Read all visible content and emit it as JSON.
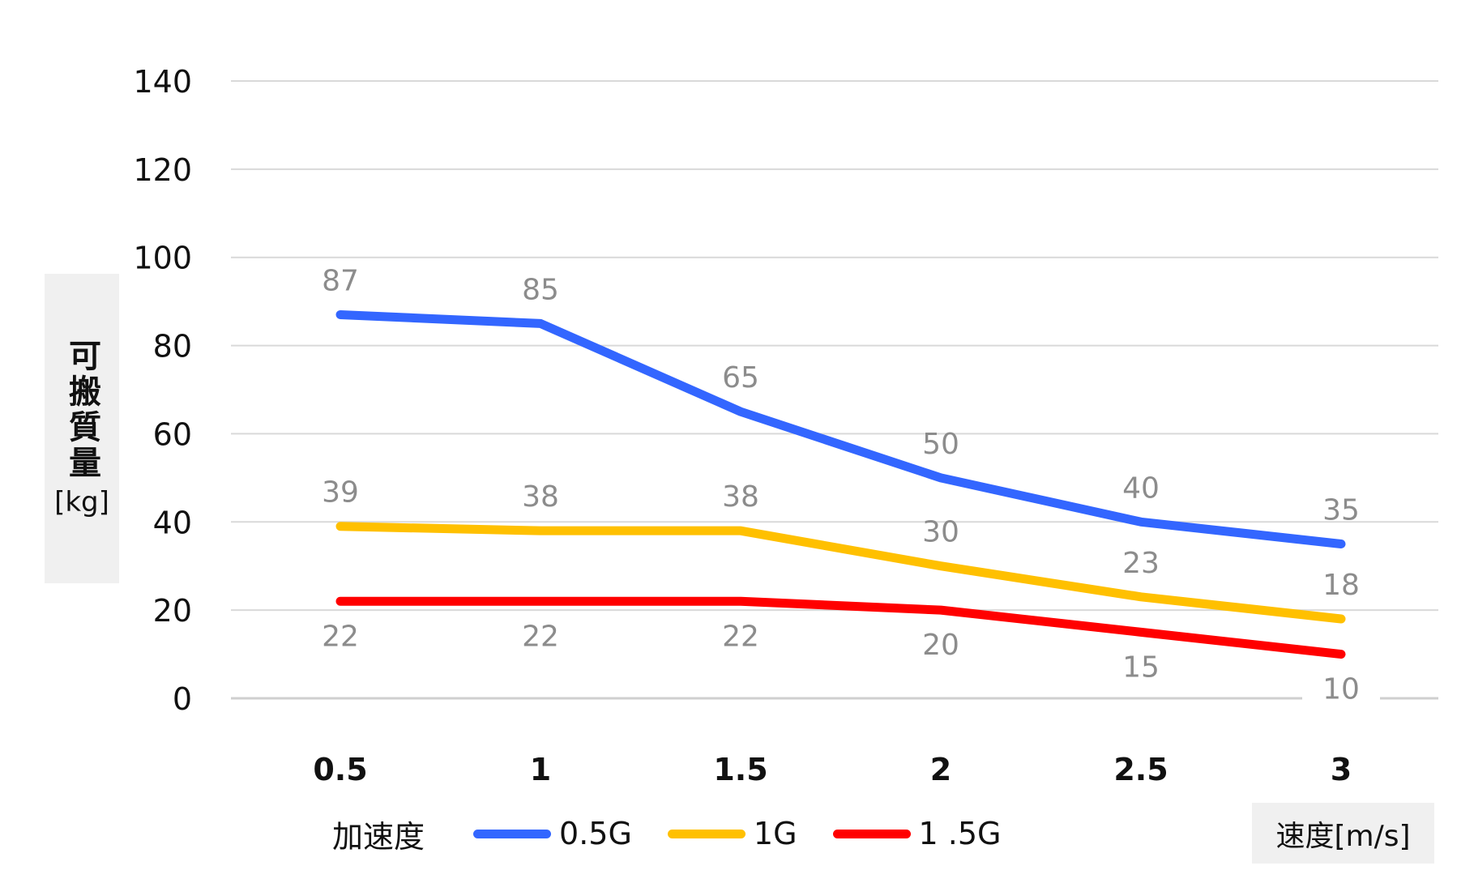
{
  "chart_data": {
    "type": "line",
    "x": [
      "0.5",
      "1",
      "1.5",
      "2",
      "2.5",
      "3"
    ],
    "ylabel": "可搬質量",
    "yunit": "[kg]",
    "xunit": "速度[m/s]",
    "ylim": [
      0,
      140
    ],
    "yticks": [
      0,
      20,
      40,
      60,
      80,
      100,
      120,
      140
    ],
    "grid": true,
    "legend_title": "加速度",
    "legend_position": "bottom",
    "series": [
      {
        "name": "0.5G",
        "color": "#3366ff",
        "values": [
          87,
          85,
          65,
          50,
          40,
          35
        ]
      },
      {
        "name": "1G",
        "color": "#ffc000",
        "values": [
          39,
          38,
          38,
          30,
          23,
          18
        ]
      },
      {
        "name": "1 .5G",
        "color": "#ff0000",
        "values": [
          22,
          22,
          22,
          20,
          15,
          10
        ]
      }
    ]
  }
}
